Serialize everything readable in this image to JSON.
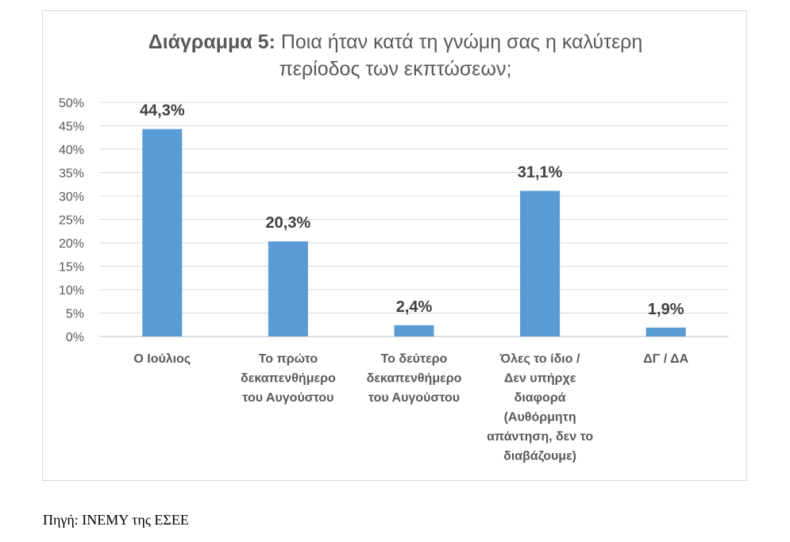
{
  "chart_data": {
    "type": "bar",
    "title_prefix": "Διάγραμμα 5:",
    "title_line1": "Ποια ήταν κατά τη γνώμη σας η καλύτερη",
    "title_line2": "περίοδος των εκπτώσεων;",
    "categories": [
      [
        "Ο Ιούλιος"
      ],
      [
        "Το πρώτο",
        "δεκαπενθήμερο",
        "του Αυγούστου"
      ],
      [
        "Το δεύτερο",
        "δεκαπενθήμερο",
        "του Αυγούστου"
      ],
      [
        "Όλες το ίδιο /",
        "Δεν υπήρχε",
        "διαφορά",
        "(Αυθόρμητη",
        "απάντηση, δεν το",
        "διαβάζουμε)"
      ],
      [
        "ΔΓ / ΔΑ"
      ]
    ],
    "values": [
      44.3,
      20.3,
      2.4,
      31.1,
      1.9
    ],
    "data_labels": [
      "44,3%",
      "20,3%",
      "2,4%",
      "31,1%",
      "1,9%"
    ],
    "y_ticks": [
      "0%",
      "5%",
      "10%",
      "15%",
      "20%",
      "25%",
      "30%",
      "35%",
      "40%",
      "45%",
      "50%"
    ],
    "ylim": [
      0,
      50
    ],
    "grid": true,
    "bar_color": "#5b9bd5"
  },
  "source": "Πηγή: ΙΝΕΜΥ της ΕΣΕΕ"
}
